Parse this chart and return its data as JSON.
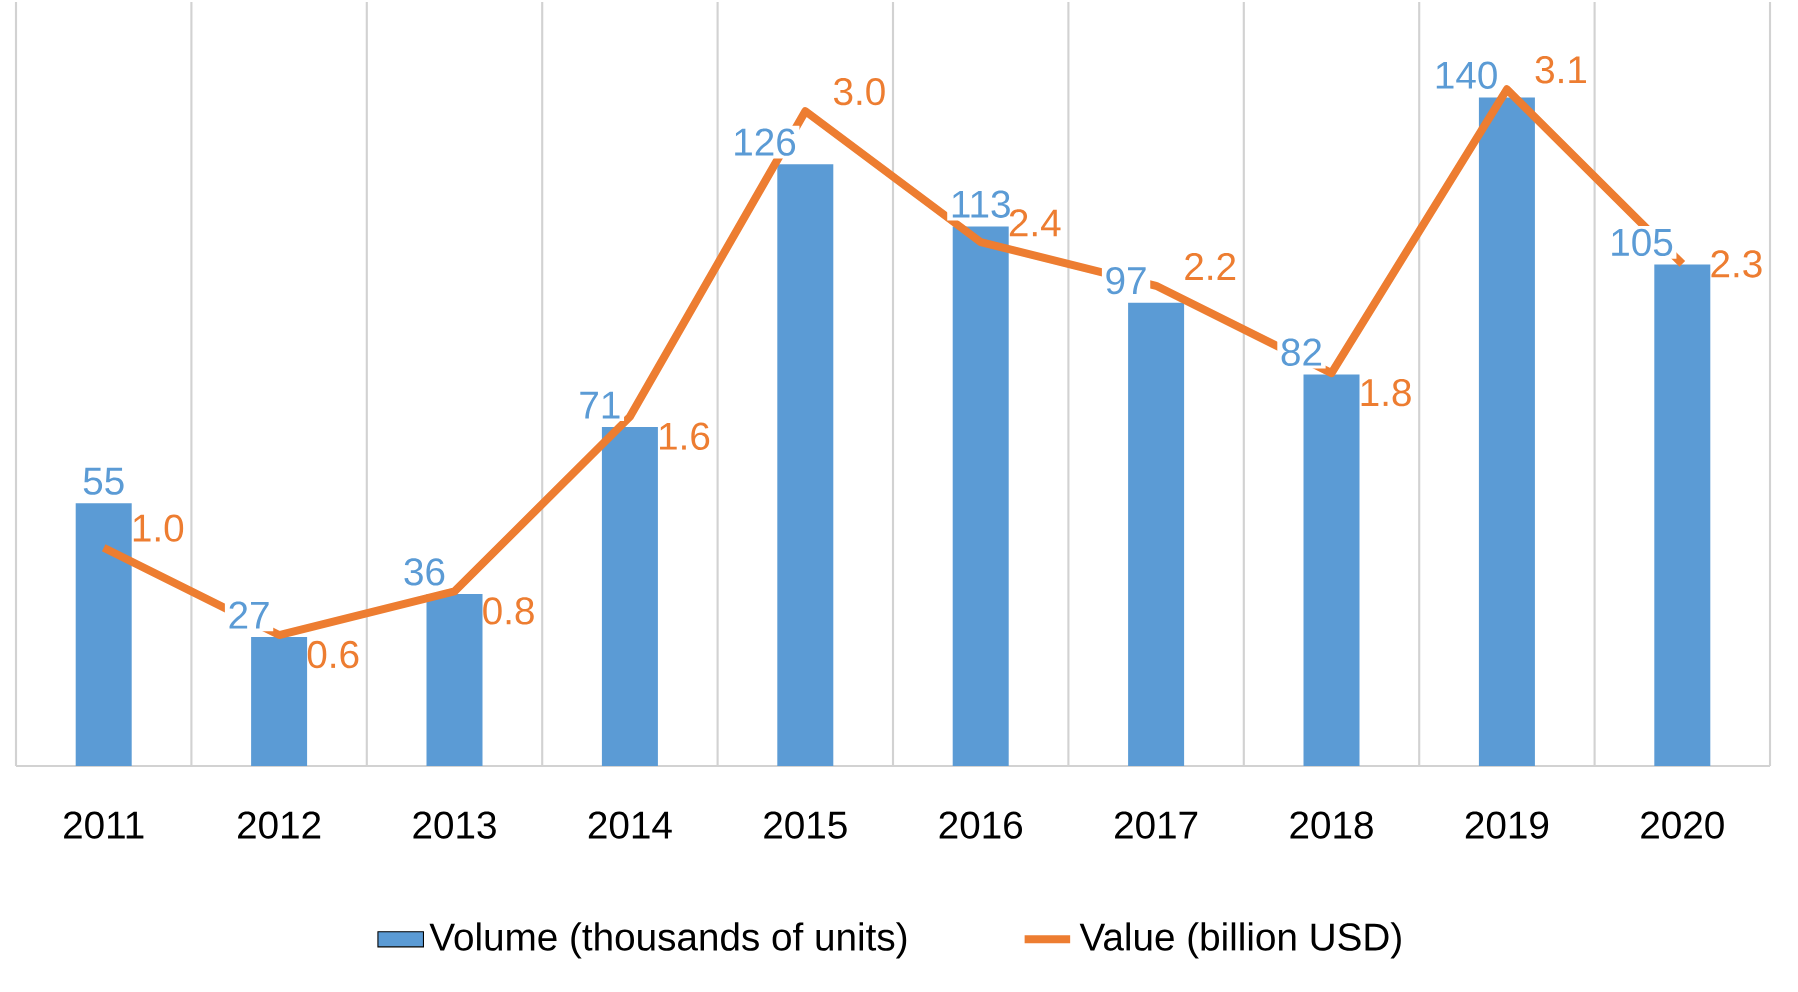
{
  "chart_data": {
    "type": "bar",
    "categories": [
      "2011",
      "2012",
      "2013",
      "2014",
      "2015",
      "2016",
      "2017",
      "2018",
      "2019",
      "2020"
    ],
    "series": [
      {
        "name": "Volume (thousands of units)",
        "color": "#5b9bd5",
        "values": [
          55,
          27,
          36,
          71,
          126,
          113,
          97,
          82,
          140,
          105
        ],
        "value_labels": [
          "55",
          "27",
          "36",
          "71",
          "126",
          "113",
          "97",
          "82",
          "140",
          "105"
        ]
      },
      {
        "name": "Value (billion USD)",
        "type": "line",
        "axis": "y2",
        "color": "#ed7d31",
        "values": [
          1.0,
          0.6,
          0.8,
          1.6,
          3.0,
          2.4,
          2.2,
          1.8,
          3.1,
          2.3
        ],
        "value_labels": [
          "1.0",
          "0.6",
          "0.8",
          "1.6",
          "3.0",
          "2.4",
          "2.2",
          "1.8",
          "3.1",
          "2.3"
        ]
      }
    ],
    "ylim": [
      0,
      160
    ],
    "y2lim": [
      0,
      3.5
    ],
    "tick_labels": "x",
    "grid": true,
    "legend": "bottom"
  }
}
